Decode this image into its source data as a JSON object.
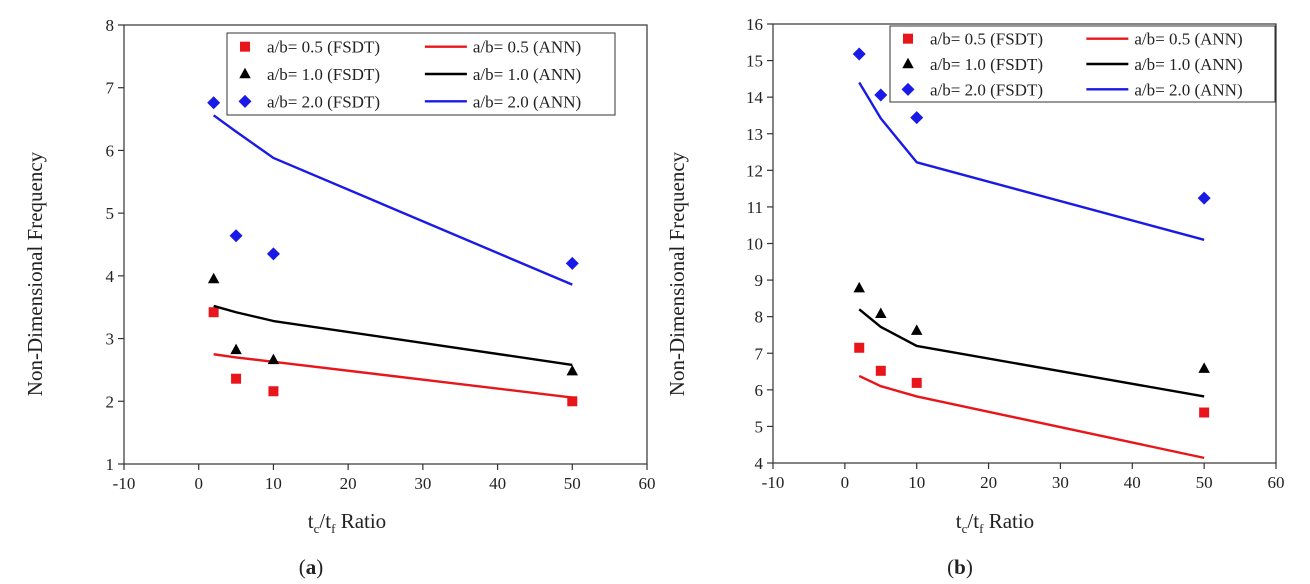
{
  "figure": {
    "background": "#ffffff"
  },
  "chart_data": [
    {
      "type": "line",
      "panel_label": {
        "open": "(",
        "letter": "a",
        "close": ")"
      },
      "xlabel": {
        "t": "t",
        "c": "c",
        "slash": "/t",
        "f": "f",
        "rest": " Ratio"
      },
      "ylabel": "Non-Dimensional Frequency",
      "xlim": [
        -10,
        60
      ],
      "ylim": [
        1,
        8
      ],
      "xticks": [
        "-10",
        "0",
        "10",
        "20",
        "30",
        "40",
        "50",
        "60"
      ],
      "yticks": [
        "1",
        "2",
        "3",
        "4",
        "5",
        "6",
        "7",
        "8"
      ],
      "grid": false,
      "legend_position": "top-right",
      "x": [
        2,
        5,
        10,
        50
      ],
      "series": [
        {
          "name": "a/b= 0.5 (FSDT)",
          "kind": "scatter",
          "marker": "square",
          "color": "#e8161b",
          "values": [
            3.42,
            2.36,
            2.16,
            2.0
          ]
        },
        {
          "name": "a/b= 0.5 (ANN)",
          "kind": "line",
          "color": "#e8161b",
          "values": [
            2.75,
            2.7,
            2.63,
            2.06
          ]
        },
        {
          "name": "a/b= 1.0 (FSDT)",
          "kind": "scatter",
          "marker": "triangle",
          "color": "#000000",
          "values": [
            3.95,
            2.82,
            2.66,
            2.48
          ]
        },
        {
          "name": "a/b= 1.0 (ANN)",
          "kind": "line",
          "color": "#000000",
          "values": [
            3.52,
            3.42,
            3.28,
            2.58
          ]
        },
        {
          "name": "a/b= 2.0 (FSDT)",
          "kind": "scatter",
          "marker": "diamond",
          "color": "#1a1ae6",
          "values": [
            6.76,
            4.64,
            4.35,
            4.2
          ]
        },
        {
          "name": "a/b= 2.0 (ANN)",
          "kind": "line",
          "color": "#1a1ae6",
          "values": [
            6.56,
            6.3,
            5.88,
            3.86
          ]
        }
      ]
    },
    {
      "type": "line",
      "panel_label": {
        "open": "(",
        "letter": "b",
        "close": ")"
      },
      "xlabel": {
        "t": "t",
        "c": "c",
        "slash": "/t",
        "f": "f",
        "rest": " Ratio"
      },
      "ylabel": "Non-Dimensional Frequency",
      "xlim": [
        -10,
        60
      ],
      "ylim": [
        4,
        16
      ],
      "xticks": [
        "-10",
        "0",
        "10",
        "20",
        "30",
        "40",
        "50",
        "60"
      ],
      "yticks": [
        "4",
        "5",
        "6",
        "7",
        "8",
        "9",
        "10",
        "11",
        "12",
        "13",
        "14",
        "15",
        "16"
      ],
      "grid": false,
      "legend_position": "top-right",
      "x": [
        2,
        5,
        10,
        50
      ],
      "series": [
        {
          "name": "a/b= 0.5 (FSDT)",
          "kind": "scatter",
          "marker": "square",
          "color": "#e8161b",
          "values": [
            7.15,
            6.52,
            6.19,
            5.38
          ]
        },
        {
          "name": "a/b= 0.5 (ANN)",
          "kind": "line",
          "color": "#e8161b",
          "values": [
            6.38,
            6.1,
            5.82,
            4.14
          ]
        },
        {
          "name": "a/b= 1.0 (FSDT)",
          "kind": "scatter",
          "marker": "triangle",
          "color": "#000000",
          "values": [
            8.78,
            8.08,
            7.62,
            6.58
          ]
        },
        {
          "name": "a/b= 1.0 (ANN)",
          "kind": "line",
          "color": "#000000",
          "values": [
            8.2,
            7.72,
            7.2,
            5.82
          ]
        },
        {
          "name": "a/b= 2.0 (FSDT)",
          "kind": "scatter",
          "marker": "diamond",
          "color": "#1a1ae6",
          "values": [
            15.18,
            14.06,
            13.44,
            11.24
          ]
        },
        {
          "name": "a/b= 2.0 (ANN)",
          "kind": "line",
          "color": "#1a1ae6",
          "values": [
            14.4,
            13.42,
            12.22,
            10.1
          ]
        }
      ]
    }
  ]
}
